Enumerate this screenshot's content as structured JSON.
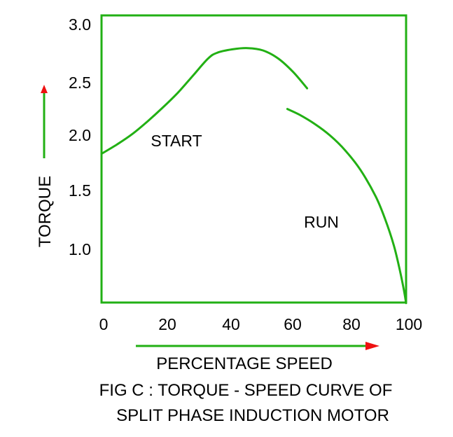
{
  "chart_data": {
    "type": "line",
    "title": "",
    "xlabel": "PERCENTAGE SPEED",
    "ylabel": "TORQUE",
    "xlim": [
      0,
      100
    ],
    "ylim": [
      0.5,
      3.0
    ],
    "x_ticks": [
      "0",
      "20",
      "40",
      "60",
      "80",
      "100"
    ],
    "y_ticks": [
      "3.0",
      "2.5",
      "2.0",
      "1.5",
      "1.0"
    ],
    "grid": false,
    "series": [
      {
        "name": "START",
        "color": "#22b014",
        "x": [
          0,
          5,
          10,
          15,
          20,
          25,
          30,
          35,
          38,
          43,
          48,
          53,
          58,
          63,
          67.5
        ],
        "y": [
          1.85,
          1.93,
          2.02,
          2.13,
          2.25,
          2.38,
          2.53,
          2.68,
          2.73,
          2.76,
          2.77,
          2.75,
          2.68,
          2.56,
          2.42
        ]
      },
      {
        "name": "RUN",
        "color": "#22b014",
        "x": [
          61,
          65,
          70,
          75,
          80,
          85,
          90,
          93,
          96,
          98,
          99.3,
          100
        ],
        "y": [
          2.24,
          2.19,
          2.11,
          2.01,
          1.88,
          1.71,
          1.48,
          1.29,
          1.05,
          0.83,
          0.66,
          0.55
        ]
      }
    ],
    "annotations": [
      "START",
      "RUN"
    ],
    "caption_lines": [
      "FIG C : TORQUE - SPEED CURVE OF",
      "SPLIT PHASE INDUCTION MOTOR"
    ],
    "frame_color": "#22b014",
    "arrow_color": "#ee1111"
  }
}
